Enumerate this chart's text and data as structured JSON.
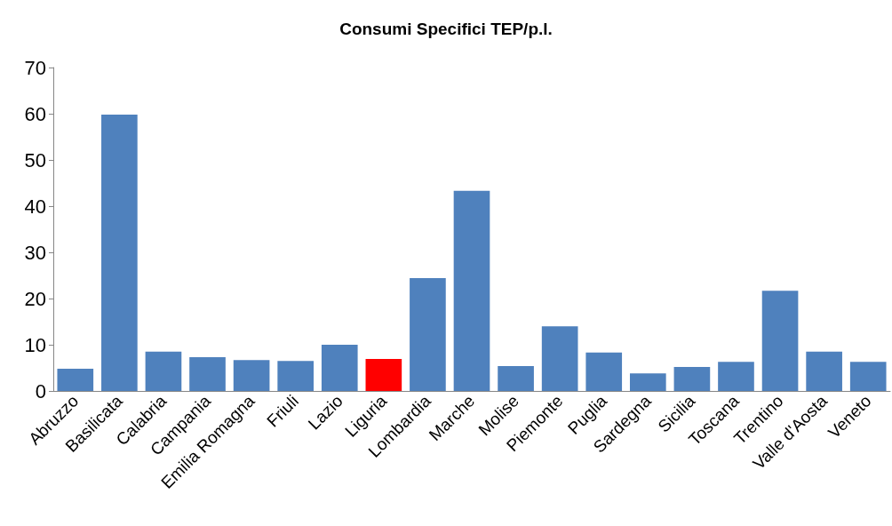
{
  "chart_data": {
    "type": "bar",
    "title": "Consumi Specifici TEP/p.l.",
    "categories": [
      "Abruzzo",
      "Basilicata",
      "Calabria",
      "Campania",
      "Emilia Romagna",
      "Friuli",
      "Lazio",
      "Liguria",
      "Lombardia",
      "Marche",
      "Molise",
      "Piemonte",
      "Puglia",
      "Sardegna",
      "Sicilia",
      "Toscana",
      "Trentino",
      "Valle d'Aosta",
      "Veneto"
    ],
    "values": [
      4.8,
      59.8,
      8.5,
      7.3,
      6.7,
      6.5,
      10,
      6.9,
      24.4,
      43.3,
      5.4,
      14,
      8.3,
      3.8,
      5.2,
      6.3,
      21.7,
      8.5,
      6.3
    ],
    "colors": [
      "#4f81bd",
      "#4f81bd",
      "#4f81bd",
      "#4f81bd",
      "#4f81bd",
      "#4f81bd",
      "#4f81bd",
      "#ff0000",
      "#4f81bd",
      "#4f81bd",
      "#4f81bd",
      "#4f81bd",
      "#4f81bd",
      "#4f81bd",
      "#4f81bd",
      "#4f81bd",
      "#4f81bd",
      "#4f81bd",
      "#4f81bd"
    ],
    "ylim": [
      0,
      70
    ],
    "yticks": [
      0,
      10,
      20,
      30,
      40,
      50,
      60,
      70
    ],
    "grid": false
  }
}
